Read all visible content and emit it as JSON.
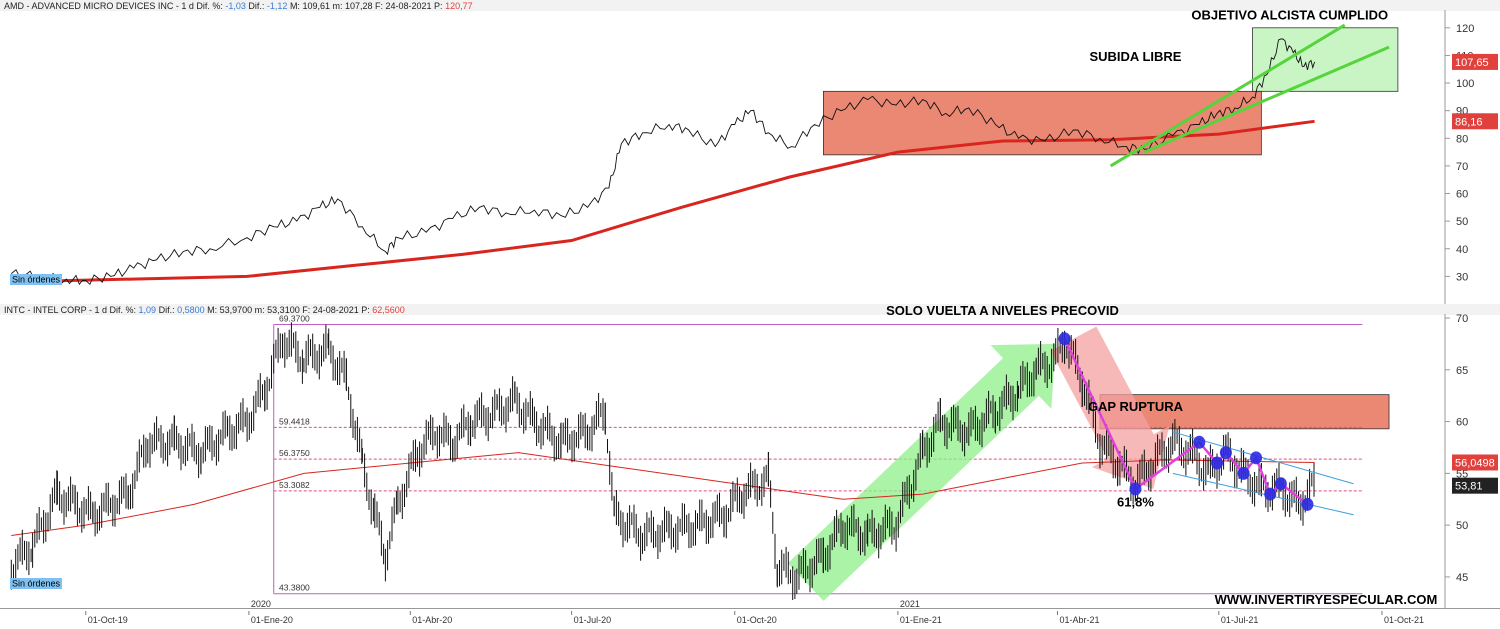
{
  "chart_data": [
    {
      "type": "line",
      "header": {
        "name": "AMD - ADVANCED MICRO DEVICES INC - 1 d",
        "dif_pct_label": "Dif. %:",
        "dif_pct": "-1,03",
        "dif_label": "Dif.:",
        "dif": "-1,12",
        "max_label": "M:",
        "max": "109,61",
        "min_label": "m:",
        "min": "107,28",
        "date_label": "F:",
        "date": "24-08-2021",
        "price_label": "P:",
        "price": "120,77"
      },
      "ylim": [
        20,
        125
      ],
      "yticks": [
        30,
        40,
        50,
        60,
        70,
        80,
        90,
        100,
        110,
        120
      ],
      "last_price": {
        "value": 107.65,
        "label": "107,65",
        "color": "#e0413c"
      },
      "ma_label": {
        "value": 86.16,
        "label": "86,16",
        "color": "#e0413c"
      },
      "price_series": [
        [
          "2019-08-20",
          31
        ],
        [
          "2019-09-05",
          30
        ],
        [
          "2019-09-20",
          29
        ],
        [
          "2019-10-01",
          28.5
        ],
        [
          "2019-10-15",
          30
        ],
        [
          "2019-10-28",
          33
        ],
        [
          "2019-11-10",
          36
        ],
        [
          "2019-11-25",
          39
        ],
        [
          "2019-12-10",
          40
        ],
        [
          "2019-12-31",
          44
        ],
        [
          "2020-01-15",
          48
        ],
        [
          "2020-01-28",
          50
        ],
        [
          "2020-02-10",
          55
        ],
        [
          "2020-02-20",
          58
        ],
        [
          "2020-03-05",
          48
        ],
        [
          "2020-03-18",
          39
        ],
        [
          "2020-03-25",
          44
        ],
        [
          "2020-04-10",
          46
        ],
        [
          "2020-04-25",
          51
        ],
        [
          "2020-05-10",
          55
        ],
        [
          "2020-05-25",
          53
        ],
        [
          "2020-06-10",
          54
        ],
        [
          "2020-06-25",
          52
        ],
        [
          "2020-07-10",
          55
        ],
        [
          "2020-07-22",
          62
        ],
        [
          "2020-07-29",
          78
        ],
        [
          "2020-08-10",
          82
        ],
        [
          "2020-08-25",
          85
        ],
        [
          "2020-09-05",
          83
        ],
        [
          "2020-09-20",
          77
        ],
        [
          "2020-10-01",
          85
        ],
        [
          "2020-10-10",
          90
        ],
        [
          "2020-10-20",
          82
        ],
        [
          "2020-11-02",
          77
        ],
        [
          "2020-11-15",
          85
        ],
        [
          "2020-11-30",
          90
        ],
        [
          "2020-12-15",
          94
        ],
        [
          "2020-12-31",
          92
        ],
        [
          "2021-01-15",
          94
        ],
        [
          "2021-01-28",
          89
        ],
        [
          "2021-02-10",
          91
        ],
        [
          "2021-02-25",
          85
        ],
        [
          "2021-03-10",
          80
        ],
        [
          "2021-03-25",
          79
        ],
        [
          "2021-04-10",
          83
        ],
        [
          "2021-04-25",
          80
        ],
        [
          "2021-05-10",
          77
        ],
        [
          "2021-05-20",
          76
        ],
        [
          "2021-06-05",
          81
        ],
        [
          "2021-06-20",
          85
        ],
        [
          "2021-06-30",
          89
        ],
        [
          "2021-07-10",
          91
        ],
        [
          "2021-07-20",
          95
        ],
        [
          "2021-07-28",
          103
        ],
        [
          "2021-08-05",
          116
        ],
        [
          "2021-08-12",
          111
        ],
        [
          "2021-08-18",
          106
        ],
        [
          "2021-08-24",
          107.65
        ]
      ],
      "ma_series": [
        [
          "2019-08-20",
          28
        ],
        [
          "2019-12-31",
          30
        ],
        [
          "2020-03-01",
          34
        ],
        [
          "2020-05-01",
          38
        ],
        [
          "2020-07-01",
          43
        ],
        [
          "2020-09-01",
          55
        ],
        [
          "2020-11-01",
          66
        ],
        [
          "2021-01-01",
          75
        ],
        [
          "2021-03-01",
          79
        ],
        [
          "2021-05-01",
          79.5
        ],
        [
          "2021-07-01",
          81.5
        ],
        [
          "2021-08-24",
          86.16
        ]
      ],
      "zones": [
        {
          "from": "2020-11-20",
          "to": "2021-07-25",
          "low": 74,
          "high": 97,
          "color": "#e8735a"
        },
        {
          "from": "2021-07-20",
          "to": "2021-10-10",
          "low": 97,
          "high": 120,
          "color": "#b7f0b0"
        }
      ],
      "trendlines": [
        {
          "points": [
            [
              "2021-05-01",
              70
            ],
            [
              "2021-09-10",
              121
            ]
          ],
          "color": "#55d43c"
        },
        {
          "points": [
            [
              "2021-05-20",
              75
            ],
            [
              "2021-10-05",
              113
            ]
          ],
          "color": "#55d43c"
        }
      ],
      "annotations": [
        {
          "text": "SUBIDA LIBRE",
          "x": "2021-05-15",
          "y": 108
        },
        {
          "text": "OBJETIVO ALCISTA CUMPLIDO",
          "x": "2021-08-10",
          "y": 123
        }
      ],
      "order_badge": "Sin órdenes"
    },
    {
      "type": "bar",
      "header": {
        "name": "INTC - INTEL CORP - 1 d",
        "dif_pct_label": "Dif. %:",
        "dif_pct": "1,09",
        "dif_label": "Dif.:",
        "dif": "0,5800",
        "max_label": "M:",
        "max": "53,9700",
        "min_label": "m:",
        "min": "53,3100",
        "date_label": "F:",
        "date": "24-08-2021",
        "price_label": "P:",
        "price": "62,5600"
      },
      "ylim": [
        42,
        70
      ],
      "yticks": [
        45,
        50,
        55,
        60,
        65,
        70
      ],
      "last_price": {
        "value": 53.81,
        "label": "53,81",
        "color": "#222222"
      },
      "ma_label": {
        "value": 56.0498,
        "label": "56,0498",
        "color": "#e0413c"
      },
      "price_series": [
        [
          "2019-08-20",
          46
        ],
        [
          "2019-09-01",
          48
        ],
        [
          "2019-09-15",
          53
        ],
        [
          "2019-09-25",
          52
        ],
        [
          "2019-10-05",
          51
        ],
        [
          "2019-10-15",
          52
        ],
        [
          "2019-10-25",
          53
        ],
        [
          "2019-11-05",
          58
        ],
        [
          "2019-11-20",
          58
        ],
        [
          "2019-12-05",
          57
        ],
        [
          "2019-12-20",
          59
        ],
        [
          "2019-12-31",
          60
        ],
        [
          "2020-01-10",
          63
        ],
        [
          "2020-01-20",
          68
        ],
        [
          "2020-02-01",
          66
        ],
        [
          "2020-02-15",
          67
        ],
        [
          "2020-02-25",
          64
        ],
        [
          "2020-03-05",
          56
        ],
        [
          "2020-03-12",
          51
        ],
        [
          "2020-03-18",
          47
        ],
        [
          "2020-03-25",
          52
        ],
        [
          "2020-04-05",
          57
        ],
        [
          "2020-04-15",
          59
        ],
        [
          "2020-04-25",
          58
        ],
        [
          "2020-05-05",
          60
        ],
        [
          "2020-05-20",
          61
        ],
        [
          "2020-05-30",
          62
        ],
        [
          "2020-06-10",
          60
        ],
        [
          "2020-06-25",
          58
        ],
        [
          "2020-07-10",
          59
        ],
        [
          "2020-07-20",
          61
        ],
        [
          "2020-07-25",
          51
        ],
        [
          "2020-08-10",
          49
        ],
        [
          "2020-08-25",
          49.5
        ],
        [
          "2020-09-10",
          50
        ],
        [
          "2020-09-25",
          51
        ],
        [
          "2020-10-05",
          53
        ],
        [
          "2020-10-15",
          54
        ],
        [
          "2020-10-20",
          54.5
        ],
        [
          "2020-10-25",
          46
        ],
        [
          "2020-11-05",
          45
        ],
        [
          "2020-11-20",
          47
        ],
        [
          "2020-12-01",
          50
        ],
        [
          "2020-12-15",
          49
        ],
        [
          "2020-12-31",
          50
        ],
        [
          "2021-01-15",
          57
        ],
        [
          "2021-01-25",
          60
        ],
        [
          "2021-02-10",
          59
        ],
        [
          "2021-02-25",
          61
        ],
        [
          "2021-03-10",
          63
        ],
        [
          "2021-03-20",
          65
        ],
        [
          "2021-03-31",
          66
        ],
        [
          "2021-04-05",
          68
        ],
        [
          "2021-04-15",
          64
        ],
        [
          "2021-04-25",
          58
        ],
        [
          "2021-05-05",
          56
        ],
        [
          "2021-05-15",
          54
        ],
        [
          "2021-05-25",
          56
        ],
        [
          "2021-06-05",
          58
        ],
        [
          "2021-06-15",
          57
        ],
        [
          "2021-06-25",
          55
        ],
        [
          "2021-07-05",
          57
        ],
        [
          "2021-07-15",
          55
        ],
        [
          "2021-07-25",
          53.5
        ],
        [
          "2021-08-05",
          53.5
        ],
        [
          "2021-08-15",
          52
        ],
        [
          "2021-08-24",
          53.81
        ]
      ],
      "ma_series": [
        [
          "2019-08-20",
          49
        ],
        [
          "2019-10-01",
          50
        ],
        [
          "2019-12-01",
          52
        ],
        [
          "2020-02-01",
          55
        ],
        [
          "2020-04-01",
          56
        ],
        [
          "2020-06-01",
          57
        ],
        [
          "2020-08-01",
          55.5
        ],
        [
          "2020-10-01",
          54
        ],
        [
          "2020-12-01",
          52.5
        ],
        [
          "2021-01-15",
          53
        ],
        [
          "2021-03-01",
          54.5
        ],
        [
          "2021-04-15",
          56
        ],
        [
          "2021-06-01",
          56.3
        ],
        [
          "2021-08-24",
          56.0498
        ]
      ],
      "fib_levels": [
        {
          "value": 69.37,
          "label": "69.3700",
          "color": "#c060c0"
        },
        {
          "value": 59.4418,
          "label": "59.4418",
          "color": "#e05080"
        },
        {
          "value": 56.375,
          "label": "56.3750",
          "color": "#e05080"
        },
        {
          "value": 53.3082,
          "label": "53.3082",
          "color": "#e05080"
        },
        {
          "value": 43.38,
          "label": "43.3800",
          "color": "#c060c0"
        }
      ],
      "zones": [
        {
          "from": "2021-04-25",
          "to": "2021-10-05",
          "low": 59.3,
          "high": 62.6,
          "color": "#e8735a"
        }
      ],
      "arrows": [
        {
          "from": [
            "2020-11-10",
            44.5
          ],
          "to": [
            "2021-03-31",
            67.5
          ],
          "color": "#8fef88"
        },
        {
          "from": [
            "2021-04-10",
            68
          ],
          "to": [
            "2021-05-25",
            53.5
          ],
          "color": "#f4a0a0"
        }
      ],
      "channel": [
        {
          "points": [
            [
              "2021-06-05",
              59
            ],
            [
              "2021-09-15",
              54
            ]
          ],
          "color": "#3aa0e0"
        },
        {
          "points": [
            [
              "2021-06-05",
              55
            ],
            [
              "2021-09-15",
              51
            ]
          ],
          "color": "#3aa0e0"
        }
      ],
      "swing_path": [
        [
          "2021-04-05",
          68
        ],
        [
          "2021-05-15",
          53.5
        ],
        [
          "2021-06-20",
          58
        ],
        [
          "2021-06-30",
          56
        ],
        [
          "2021-07-05",
          57
        ],
        [
          "2021-07-15",
          55
        ],
        [
          "2021-07-22",
          56.5
        ],
        [
          "2021-07-30",
          53
        ],
        [
          "2021-08-05",
          54
        ],
        [
          "2021-08-20",
          52
        ]
      ],
      "swing_points": [
        [
          "2021-04-05",
          68
        ],
        [
          "2021-05-15",
          53.5
        ],
        [
          "2021-06-20",
          58
        ],
        [
          "2021-06-30",
          56
        ],
        [
          "2021-07-05",
          57
        ],
        [
          "2021-07-15",
          55
        ],
        [
          "2021-07-22",
          56.5
        ],
        [
          "2021-07-30",
          53
        ],
        [
          "2021-08-05",
          54
        ],
        [
          "2021-08-20",
          52
        ]
      ],
      "annotations": [
        {
          "text": "SOLO VUELTA A NIVELES PRECOVID",
          "x": "2021-03-01",
          "y": 70.3
        },
        {
          "text": "GAP RUPTURA",
          "x": "2021-05-15",
          "y": 61
        },
        {
          "text": "61,8%",
          "x": "2021-05-15",
          "y": 51.8
        }
      ],
      "order_badge": "Sin órdenes"
    }
  ],
  "x_axis": {
    "start": "2019-08-17",
    "end": "2021-11-05",
    "ticks": [
      {
        "date": "2019-10-01",
        "label": "01-Oct-19"
      },
      {
        "date": "2020-01-01",
        "label": "01-Ene-20"
      },
      {
        "date": "2020-04-01",
        "label": "01-Abr-20"
      },
      {
        "date": "2020-07-01",
        "label": "01-Jul-20"
      },
      {
        "date": "2020-10-01",
        "label": "01-Oct-20"
      },
      {
        "date": "2021-01-01",
        "label": "01-Ene-21"
      },
      {
        "date": "2021-04-01",
        "label": "01-Abr-21"
      },
      {
        "date": "2021-07-01",
        "label": "01-Jul-21"
      },
      {
        "date": "2021-10-01",
        "label": "01-Oct-21"
      }
    ],
    "year_marks": [
      {
        "date": "2020-01-01",
        "label": "2020"
      },
      {
        "date": "2021-01-01",
        "label": "2021"
      }
    ]
  },
  "watermark": "WWW.INVERTIRYESPECULAR.COM"
}
